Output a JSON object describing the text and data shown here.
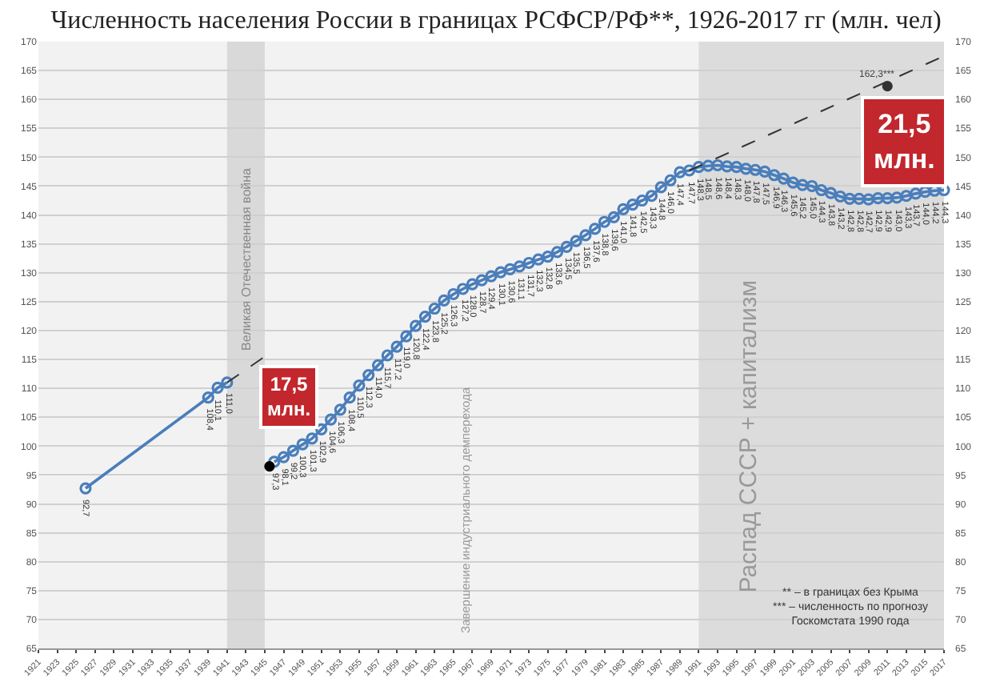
{
  "chart_data": {
    "type": "line",
    "title": "Численность населения России в границах РСФСР/РФ**, 1926-2017 гг (млн. чел)",
    "xlim": [
      1921,
      2017
    ],
    "xticks": [
      1921,
      1923,
      1925,
      1927,
      1929,
      1931,
      1933,
      1935,
      1937,
      1939,
      1941,
      1943,
      1945,
      1947,
      1949,
      1951,
      1953,
      1955,
      1957,
      1959,
      1961,
      1963,
      1965,
      1967,
      1969,
      1971,
      1973,
      1975,
      1977,
      1979,
      1981,
      1983,
      1985,
      1987,
      1989,
      1991,
      1993,
      1995,
      1997,
      1999,
      2001,
      2003,
      2005,
      2007,
      2009,
      2011,
      2013,
      2015,
      2017
    ],
    "ylim": [
      65,
      170
    ],
    "yticks": [
      65,
      70,
      75,
      80,
      85,
      90,
      95,
      100,
      105,
      110,
      115,
      120,
      125,
      130,
      135,
      140,
      145,
      150,
      155,
      160,
      165,
      170
    ],
    "y2lim": [
      65,
      170
    ],
    "y2ticks": [
      65,
      70,
      75,
      80,
      85,
      90,
      95,
      100,
      105,
      110,
      115,
      120,
      125,
      130,
      135,
      140,
      145,
      150,
      155,
      160,
      165,
      170
    ],
    "grid": "y",
    "marker": "circle",
    "line_style": "solid",
    "series": [
      {
        "color": "#4a7ebb",
        "x": [
          1926,
          1939,
          1940,
          1941
        ],
        "values": [
          92.7,
          108.4,
          110.1,
          111.0
        ],
        "value_labels": [
          "92,7",
          "108,4",
          "110,1",
          "111,0"
        ]
      },
      {
        "color": "#4a7ebb",
        "x": [
          1946,
          1947,
          1948,
          1949,
          1950,
          1951,
          1952,
          1953,
          1954,
          1955,
          1956,
          1957,
          1958,
          1959,
          1960,
          1961,
          1962,
          1963,
          1964,
          1965,
          1966,
          1967,
          1968,
          1969,
          1970,
          1971,
          1972,
          1973,
          1974,
          1975,
          1976,
          1977,
          1978,
          1979,
          1980,
          1981,
          1982,
          1983,
          1984,
          1985,
          1986,
          1987,
          1988,
          1989,
          1990,
          1991,
          1992,
          1993,
          1994,
          1995,
          1996,
          1997,
          1998,
          1999,
          2000,
          2001,
          2002,
          2003,
          2004,
          2005,
          2006,
          2007,
          2008,
          2009,
          2010,
          2011,
          2012,
          2013,
          2014,
          2015,
          2016,
          2017
        ],
        "values": [
          97.3,
          98.1,
          99.2,
          100.3,
          101.3,
          102.9,
          104.6,
          106.3,
          108.4,
          110.5,
          112.3,
          114.0,
          115.7,
          117.2,
          119.0,
          120.8,
          122.4,
          123.8,
          125.2,
          126.3,
          127.2,
          128.0,
          128.7,
          129.4,
          130.1,
          130.6,
          131.1,
          131.7,
          132.3,
          132.8,
          133.6,
          134.5,
          135.5,
          136.5,
          137.6,
          138.8,
          139.6,
          141.0,
          141.8,
          142.5,
          143.3,
          144.8,
          146.0,
          147.4,
          147.7,
          148.3,
          148.5,
          148.6,
          148.4,
          148.3,
          148.0,
          147.8,
          147.5,
          146.9,
          146.3,
          145.6,
          145.2,
          145.0,
          144.3,
          143.8,
          143.2,
          142.8,
          142.8,
          142.7,
          142.9,
          142.9,
          143.0,
          143.3,
          143.7,
          144.0,
          144.2,
          144.3
        ],
        "value_labels": [
          "97,3",
          "98,1",
          "99,2",
          "100,3",
          "101,3",
          "102,9",
          "104,6",
          "106,3",
          "108,4",
          "110,5",
          "112,3",
          "114,0",
          "115,7",
          "117,2",
          "119,0",
          "120,8",
          "122,4",
          "123,8",
          "125,2",
          "126,3",
          "127,2",
          "128,0",
          "128,7",
          "129,4",
          "130,1",
          "130,6",
          "131,1",
          "131,7",
          "132,3",
          "132,8",
          "133,6",
          "134,5",
          "135,5",
          "136,5",
          "137,6",
          "138,8",
          "139,6",
          "141,0",
          "141,8",
          "142,5",
          "143,3",
          "144,8",
          "146,0",
          "147,4",
          "147,7",
          "148,3",
          "148,5",
          "148,6",
          "148,4",
          "148,3",
          "148,0",
          "147,8",
          "147,5",
          "146,9",
          "146,3",
          "145,6",
          "145,2",
          "145,0",
          "144,3",
          "143,8",
          "143,2",
          "142,8",
          "142,8",
          "142,7",
          "142,9",
          "142,9",
          "143,0",
          "143,3",
          "143,7",
          "144,0",
          "144,2",
          "144,3"
        ]
      },
      {
        "type": "scatter",
        "color": "#000000",
        "marker": "circle",
        "x": [
          1945.5
        ],
        "values": [
          96.5
        ]
      },
      {
        "color": "#333333",
        "marker": "none",
        "line_style": "dashed",
        "x": [
          1941,
          1945
        ],
        "values": [
          111.0,
          115.5
        ]
      },
      {
        "color": "#333333",
        "marker": "none",
        "line_style": "dashed",
        "x": [
          1990,
          2017
        ],
        "values": [
          147.7,
          167.5
        ]
      },
      {
        "type": "scatter",
        "color": "#333333",
        "marker": "circle",
        "x": [
          2011
        ],
        "values": [
          162.3
        ],
        "value_labels": [
          "162,3***"
        ]
      }
    ],
    "bands": [
      {
        "axis": "x",
        "from": 1941,
        "to": 1945,
        "label": "Великая Отечественная война",
        "color": "#d9d9d9"
      },
      {
        "axis": "x",
        "from": 1991,
        "to": 2017,
        "label": "Распад СССР + капитализм",
        "color": "#dcdcdc"
      }
    ],
    "annotations": [
      "Завершение индустриального демперехода",
      "17,5\nмлн.",
      "21,5\nмлн.",
      "** – в границах без Крыма\n*** – численность по прогнозу\nГоскомстата 1990 года"
    ]
  }
}
